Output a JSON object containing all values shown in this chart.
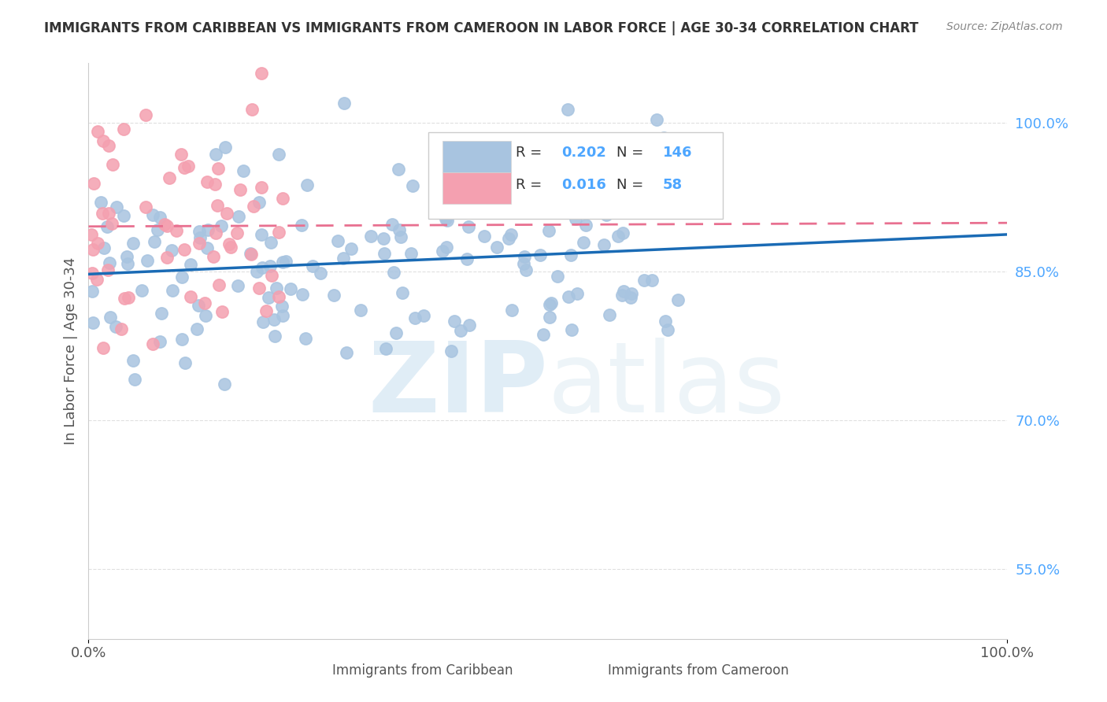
{
  "title": "IMMIGRANTS FROM CARIBBEAN VS IMMIGRANTS FROM CAMEROON IN LABOR FORCE | AGE 30-34 CORRELATION CHART",
  "source": "Source: ZipAtlas.com",
  "ylabel": "In Labor Force | Age 30-34",
  "right_yticks": [
    55.0,
    70.0,
    85.0,
    100.0
  ],
  "caribbean_color": "#a8c4e0",
  "cameroon_color": "#f4a0b0",
  "caribbean_line_color": "#1a6bb5",
  "cameroon_line_color": "#e87090",
  "r_caribbean": 0.202,
  "n_caribbean": 146,
  "r_cameroon": 0.016,
  "n_cameroon": 58,
  "background_color": "#ffffff",
  "grid_color": "#e0e0e0",
  "title_color": "#333333",
  "axis_label_color": "#555555",
  "right_tick_color": "#4da6ff",
  "watermark_zip": "ZIP",
  "watermark_atlas": "atlas",
  "bottom_label_caribbean": "Immigrants from Caribbean",
  "bottom_label_cameroon": "Immigrants from Cameroon"
}
